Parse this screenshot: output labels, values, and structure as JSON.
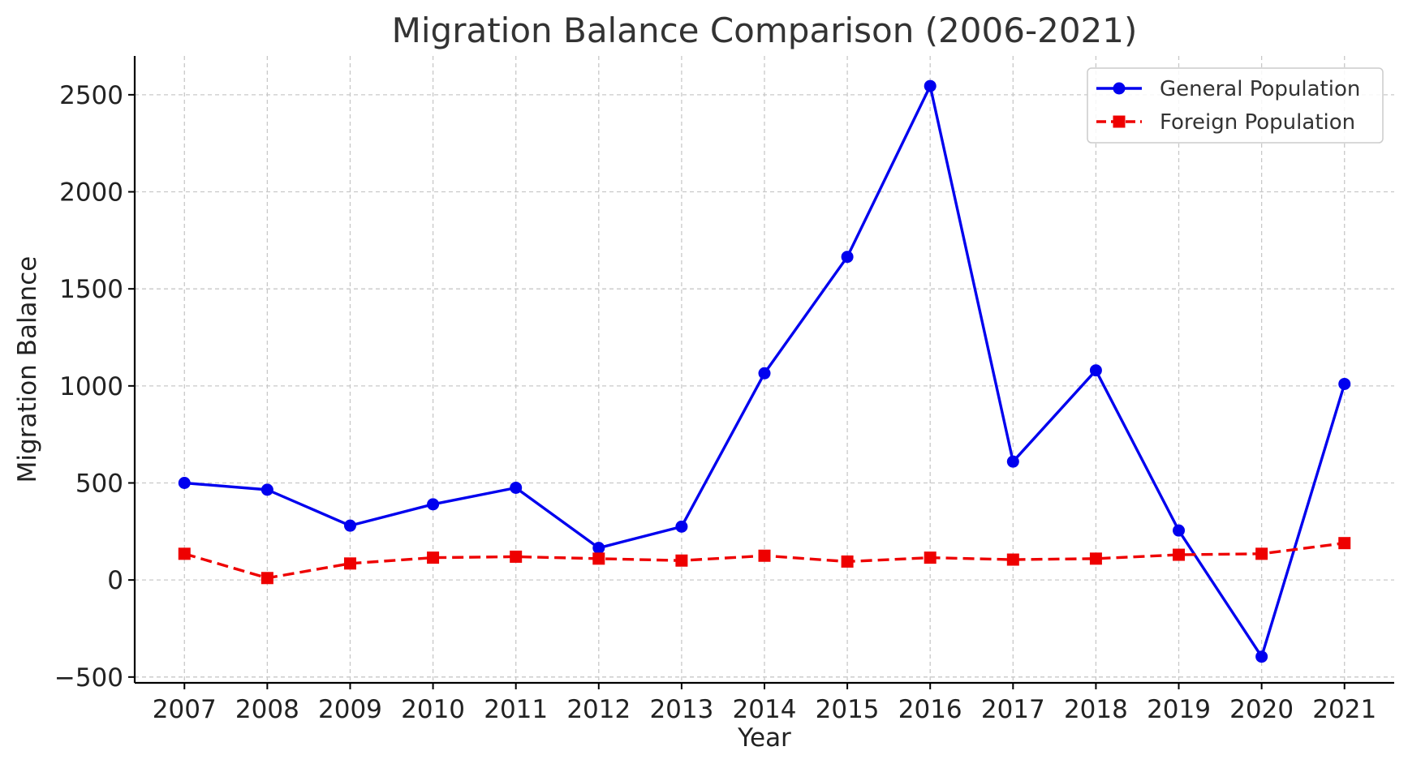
{
  "chart_data": {
    "type": "line",
    "title": "Migration Balance Comparison (2006-2021)",
    "xlabel": "Year",
    "ylabel": "Migration Balance",
    "categories": [
      "2007",
      "2008",
      "2009",
      "2010",
      "2011",
      "2012",
      "2013",
      "2014",
      "2015",
      "2016",
      "2017",
      "2018",
      "2019",
      "2020",
      "2021"
    ],
    "x": [
      2007,
      2008,
      2009,
      2010,
      2011,
      2012,
      2013,
      2014,
      2015,
      2016,
      2017,
      2018,
      2019,
      2020,
      2021
    ],
    "xlim": [
      2006.4,
      2021.6
    ],
    "ylim": [
      -530,
      2700
    ],
    "yticks": [
      -500,
      0,
      500,
      1000,
      1500,
      2000,
      2500
    ],
    "ytick_labels": [
      "−500",
      "0",
      "500",
      "1000",
      "1500",
      "2000",
      "2500"
    ],
    "grid": true,
    "legend_position": "top-right",
    "series": [
      {
        "name": "General Population",
        "color": "#0000ee",
        "line_style": "solid",
        "marker": "circle",
        "values": [
          500,
          465,
          280,
          390,
          475,
          165,
          275,
          1065,
          1665,
          2545,
          610,
          1080,
          255,
          -395,
          1010
        ]
      },
      {
        "name": "Foreign Population",
        "color": "#ee0000",
        "line_style": "dashed",
        "marker": "square",
        "values": [
          135,
          10,
          85,
          115,
          120,
          110,
          100,
          125,
          95,
          115,
          105,
          110,
          130,
          135,
          190
        ]
      }
    ]
  }
}
